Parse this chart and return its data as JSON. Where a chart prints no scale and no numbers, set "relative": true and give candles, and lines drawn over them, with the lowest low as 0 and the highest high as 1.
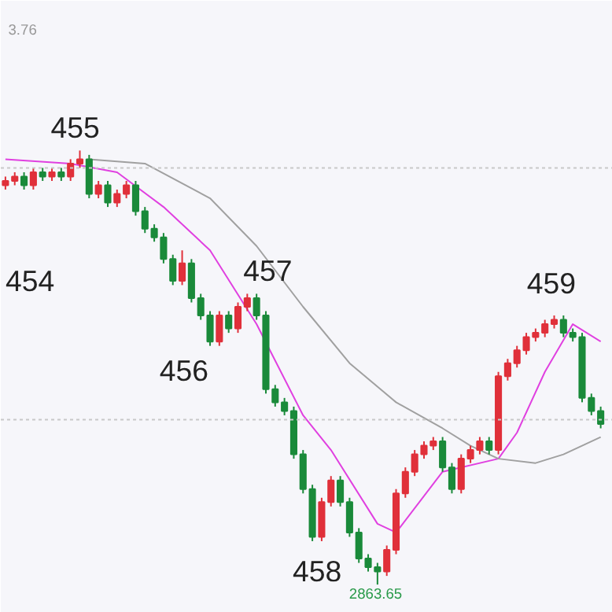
{
  "chart_data": {
    "type": "candlestick",
    "relative": true,
    "grid": false,
    "categories": [
      null,
      null,
      null,
      null,
      null,
      null,
      null,
      null,
      null,
      null,
      null,
      null,
      null,
      null,
      null,
      null,
      null,
      null,
      null,
      null,
      null,
      null,
      null,
      null,
      null,
      null,
      null,
      null,
      null,
      null,
      null,
      null,
      null,
      null,
      null,
      null,
      null,
      null,
      null,
      null,
      null,
      null,
      null,
      null,
      null,
      null,
      null,
      null,
      null,
      null,
      null,
      null,
      null,
      null,
      null,
      null,
      null,
      null,
      null,
      null,
      null,
      null,
      null,
      null,
      null
    ],
    "ohlc": [
      [
        0.92,
        0.94,
        0.91,
        0.93
      ],
      [
        0.93,
        0.95,
        0.92,
        0.94
      ],
      [
        0.94,
        0.95,
        0.91,
        0.92
      ],
      [
        0.92,
        0.96,
        0.91,
        0.95
      ],
      [
        0.95,
        0.96,
        0.93,
        0.94
      ],
      [
        0.94,
        0.96,
        0.93,
        0.95
      ],
      [
        0.95,
        0.96,
        0.93,
        0.94
      ],
      [
        0.94,
        0.98,
        0.93,
        0.97
      ],
      [
        0.97,
        1.0,
        0.96,
        0.98
      ],
      [
        0.98,
        0.99,
        0.89,
        0.9
      ],
      [
        0.9,
        0.93,
        0.89,
        0.92
      ],
      [
        0.92,
        0.93,
        0.87,
        0.88
      ],
      [
        0.88,
        0.91,
        0.87,
        0.9
      ],
      [
        0.9,
        0.93,
        0.89,
        0.92
      ],
      [
        0.92,
        0.93,
        0.85,
        0.86
      ],
      [
        0.86,
        0.87,
        0.81,
        0.82
      ],
      [
        0.82,
        0.83,
        0.79,
        0.8
      ],
      [
        0.8,
        0.81,
        0.74,
        0.75
      ],
      [
        0.75,
        0.76,
        0.69,
        0.7
      ],
      [
        0.7,
        0.77,
        0.69,
        0.74
      ],
      [
        0.74,
        0.75,
        0.65,
        0.66
      ],
      [
        0.66,
        0.67,
        0.61,
        0.62
      ],
      [
        0.62,
        0.63,
        0.55,
        0.56
      ],
      [
        0.56,
        0.63,
        0.55,
        0.62
      ],
      [
        0.62,
        0.63,
        0.58,
        0.59
      ],
      [
        0.59,
        0.65,
        0.58,
        0.64
      ],
      [
        0.64,
        0.67,
        0.63,
        0.66
      ],
      [
        0.66,
        0.67,
        0.61,
        0.62
      ],
      [
        0.62,
        0.63,
        0.44,
        0.45
      ],
      [
        0.45,
        0.46,
        0.41,
        0.42
      ],
      [
        0.42,
        0.43,
        0.39,
        0.4
      ],
      [
        0.4,
        0.41,
        0.29,
        0.3
      ],
      [
        0.3,
        0.31,
        0.21,
        0.22
      ],
      [
        0.22,
        0.23,
        0.1,
        0.11
      ],
      [
        0.11,
        0.2,
        0.1,
        0.19
      ],
      [
        0.19,
        0.25,
        0.18,
        0.24
      ],
      [
        0.24,
        0.25,
        0.18,
        0.19
      ],
      [
        0.19,
        0.2,
        0.11,
        0.12
      ],
      [
        0.12,
        0.13,
        0.05,
        0.06
      ],
      [
        0.06,
        0.07,
        0.03,
        0.04
      ],
      [
        0.04,
        0.05,
        0.0,
        0.03
      ],
      [
        0.03,
        0.09,
        0.02,
        0.08
      ],
      [
        0.08,
        0.22,
        0.07,
        0.21
      ],
      [
        0.21,
        0.27,
        0.2,
        0.26
      ],
      [
        0.26,
        0.31,
        0.25,
        0.3
      ],
      [
        0.3,
        0.33,
        0.29,
        0.32
      ],
      [
        0.32,
        0.34,
        0.31,
        0.33
      ],
      [
        0.33,
        0.34,
        0.26,
        0.27
      ],
      [
        0.27,
        0.28,
        0.21,
        0.22
      ],
      [
        0.22,
        0.3,
        0.21,
        0.29
      ],
      [
        0.29,
        0.32,
        0.28,
        0.31
      ],
      [
        0.31,
        0.34,
        0.3,
        0.33
      ],
      [
        0.33,
        0.34,
        0.3,
        0.31
      ],
      [
        0.31,
        0.49,
        0.3,
        0.48
      ],
      [
        0.48,
        0.52,
        0.47,
        0.51
      ],
      [
        0.51,
        0.55,
        0.5,
        0.54
      ],
      [
        0.54,
        0.58,
        0.53,
        0.57
      ],
      [
        0.57,
        0.59,
        0.56,
        0.58
      ],
      [
        0.58,
        0.61,
        0.57,
        0.6
      ],
      [
        0.6,
        0.62,
        0.59,
        0.61
      ],
      [
        0.61,
        0.62,
        0.57,
        0.58
      ],
      [
        0.58,
        0.59,
        0.56,
        0.57
      ],
      [
        0.57,
        0.58,
        0.42,
        0.43
      ],
      [
        0.43,
        0.44,
        0.39,
        0.4
      ],
      [
        0.4,
        0.41,
        0.36,
        0.37
      ]
    ],
    "series": [
      {
        "type": "line",
        "color": "#e040e0",
        "values": [
          0.98,
          null,
          null,
          null,
          null,
          null,
          null,
          0.97,
          null,
          null,
          null,
          null,
          0.95,
          null,
          null,
          null,
          null,
          0.87,
          null,
          null,
          null,
          null,
          0.77,
          null,
          null,
          null,
          null,
          0.6,
          null,
          null,
          null,
          null,
          0.39,
          null,
          null,
          0.31,
          null,
          null,
          null,
          null,
          0.14,
          null,
          0.12,
          null,
          null,
          null,
          null,
          0.26,
          null,
          null,
          null,
          null,
          null,
          0.29,
          null,
          0.35,
          null,
          null,
          0.49,
          null,
          null,
          0.6,
          null,
          null,
          0.56
        ]
      },
      {
        "type": "line",
        "color": "#a0a0a0",
        "values": [
          null,
          null,
          null,
          null,
          null,
          null,
          null,
          null,
          null,
          0.98,
          null,
          null,
          null,
          null,
          null,
          0.97,
          null,
          null,
          null,
          null,
          null,
          null,
          0.89,
          null,
          null,
          null,
          null,
          0.78,
          null,
          null,
          null,
          null,
          0.64,
          null,
          null,
          null,
          null,
          0.51,
          null,
          null,
          null,
          null,
          0.42,
          null,
          null,
          null,
          null,
          0.36,
          null,
          null,
          0.32,
          null,
          null,
          0.29,
          null,
          null,
          null,
          0.28,
          null,
          null,
          0.3,
          null,
          null,
          null,
          0.34
        ]
      }
    ],
    "ref_lines": [
      {
        "axis": "y",
        "value": 0.96,
        "color": "#c8c8c8",
        "line_style": "dotted"
      },
      {
        "axis": "y",
        "value": 0.38,
        "color": "#c8c8c8",
        "line_style": "dotted"
      }
    ],
    "annotations": [
      "454",
      "455",
      "456",
      "457",
      "458",
      "459",
      "2863.65",
      "3.76"
    ]
  }
}
